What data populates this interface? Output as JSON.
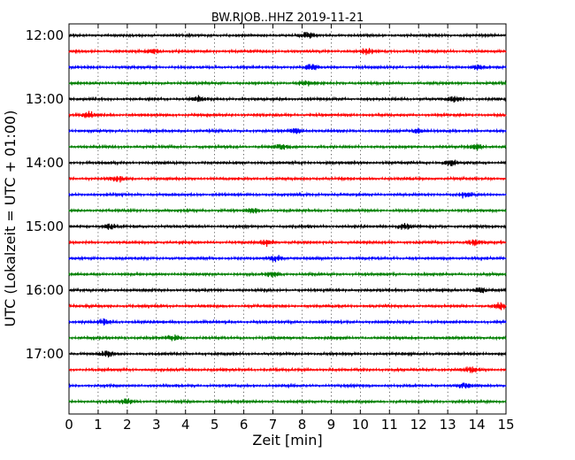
{
  "chart_data": {
    "type": "line",
    "title": "BW.RJOB..HHZ 2019-11-21",
    "xlabel": "Zeit  [min]",
    "ylabel": "UTC (Lokalzeit = UTC + 01:00)",
    "xlim": [
      0,
      15
    ],
    "x_ticks": [
      "0",
      "1",
      "2",
      "3",
      "4",
      "5",
      "6",
      "7",
      "8",
      "9",
      "10",
      "11",
      "12",
      "13",
      "14",
      "15"
    ],
    "y_ticks": [
      "12:00",
      "13:00",
      "14:00",
      "15:00",
      "16:00",
      "17:00"
    ],
    "grid": "vertical dotted lines at each minute",
    "trace_minutes": 15,
    "trace_colors": [
      "#000000",
      "#ff0000",
      "#0000ff",
      "#007f00"
    ],
    "traces": [
      {
        "start": "12:00",
        "bursts_min": [
          8.2
        ]
      },
      {
        "start": "12:15",
        "bursts_min": [
          2.9,
          10.2
        ]
      },
      {
        "start": "12:30",
        "bursts_min": [
          8.3,
          14.0
        ]
      },
      {
        "start": "12:45",
        "bursts_min": [
          8.1
        ]
      },
      {
        "start": "13:00",
        "bursts_min": [
          4.4,
          13.2
        ]
      },
      {
        "start": "13:15",
        "bursts_min": [
          0.7
        ]
      },
      {
        "start": "13:30",
        "bursts_min": [
          7.8,
          12.0
        ]
      },
      {
        "start": "13:45",
        "bursts_min": [
          7.3,
          14.0
        ]
      },
      {
        "start": "14:00",
        "bursts_min": [
          13.1
        ]
      },
      {
        "start": "14:15",
        "bursts_min": [
          1.7
        ]
      },
      {
        "start": "14:30",
        "bursts_min": [
          13.6
        ]
      },
      {
        "start": "14:45",
        "bursts_min": [
          6.3
        ]
      },
      {
        "start": "15:00",
        "bursts_min": [
          1.4,
          11.5
        ]
      },
      {
        "start": "15:15",
        "bursts_min": [
          6.8,
          13.9
        ]
      },
      {
        "start": "15:30",
        "bursts_min": [
          7.1
        ]
      },
      {
        "start": "15:45",
        "bursts_min": [
          7.0
        ]
      },
      {
        "start": "16:00",
        "bursts_min": [
          14.1
        ]
      },
      {
        "start": "16:15",
        "bursts_min": [
          14.8
        ]
      },
      {
        "start": "16:30",
        "bursts_min": [
          1.2
        ]
      },
      {
        "start": "16:45",
        "bursts_min": [
          3.6
        ]
      },
      {
        "start": "17:00",
        "bursts_min": [
          1.3
        ]
      },
      {
        "start": "17:15",
        "bursts_min": [
          13.8
        ]
      },
      {
        "start": "17:30",
        "bursts_min": [
          13.6
        ]
      },
      {
        "start": "17:45",
        "bursts_min": [
          2.0
        ]
      }
    ]
  }
}
